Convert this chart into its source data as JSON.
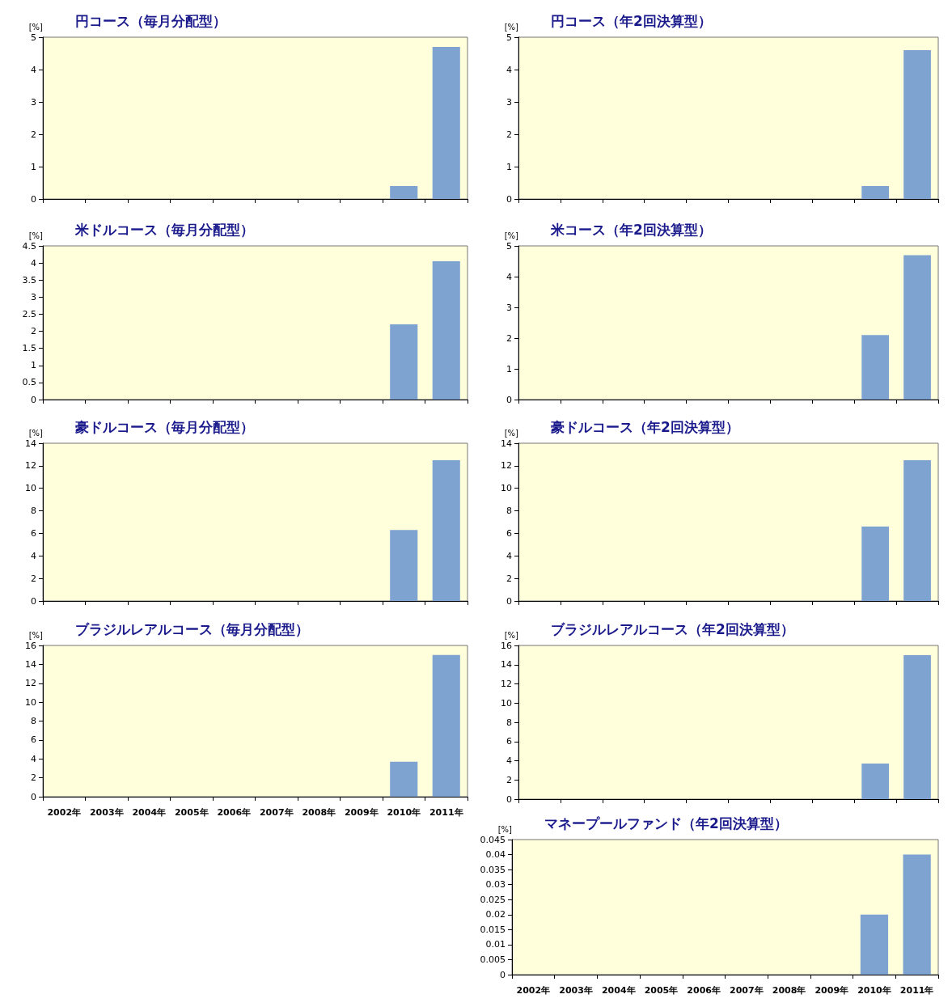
{
  "chart_data": [
    {
      "type": "bar",
      "title": "円コース（毎月分配型）",
      "ylabel": "[%]",
      "categories": [
        null,
        null,
        null,
        null,
        null,
        null,
        null,
        null,
        null,
        null
      ],
      "values": [
        null,
        null,
        null,
        null,
        null,
        null,
        null,
        null,
        0.4,
        4.7
      ],
      "color": "#7fa3d1",
      "ylim": [
        0,
        5
      ],
      "yticks": [
        0,
        1,
        2,
        3,
        4,
        5
      ],
      "tick_labels": "y"
    },
    {
      "type": "bar",
      "title": "円コース（年2回決算型）",
      "ylabel": "[%]",
      "categories": [
        null,
        null,
        null,
        null,
        null,
        null,
        null,
        null,
        null,
        null
      ],
      "values": [
        null,
        null,
        null,
        null,
        null,
        null,
        null,
        null,
        0.4,
        4.6
      ],
      "color": "#7fa3d1",
      "ylim": [
        0,
        5
      ],
      "yticks": [
        0,
        1,
        2,
        3,
        4,
        5
      ],
      "tick_labels": "y"
    },
    {
      "type": "bar",
      "title": "米ドルコース（毎月分配型）",
      "ylabel": "[%]",
      "categories": [
        null,
        null,
        null,
        null,
        null,
        null,
        null,
        null,
        null,
        null
      ],
      "values": [
        null,
        null,
        null,
        null,
        null,
        null,
        null,
        null,
        2.2,
        4.05
      ],
      "color": "#7fa3d1",
      "ylim": [
        0,
        4.5
      ],
      "yticks": [
        0,
        0.5,
        1,
        1.5,
        2,
        2.5,
        3,
        3.5,
        4,
        4.5
      ],
      "tick_labels": "y"
    },
    {
      "type": "bar",
      "title": "米コース（年2回決算型）",
      "ylabel": "[%]",
      "categories": [
        null,
        null,
        null,
        null,
        null,
        null,
        null,
        null,
        null,
        null
      ],
      "values": [
        null,
        null,
        null,
        null,
        null,
        null,
        null,
        null,
        2.1,
        4.7
      ],
      "color": "#7fa3d1",
      "ylim": [
        0,
        5
      ],
      "yticks": [
        0,
        1,
        2,
        3,
        4,
        5
      ],
      "tick_labels": "y"
    },
    {
      "type": "bar",
      "title": "豪ドルコース（毎月分配型）",
      "ylabel": "[%]",
      "categories": [
        null,
        null,
        null,
        null,
        null,
        null,
        null,
        null,
        null,
        null
      ],
      "values": [
        null,
        null,
        null,
        null,
        null,
        null,
        null,
        null,
        6.3,
        12.5
      ],
      "color": "#7fa3d1",
      "ylim": [
        0,
        14
      ],
      "yticks": [
        0,
        2,
        4,
        6,
        8,
        10,
        12,
        14
      ],
      "tick_labels": "y"
    },
    {
      "type": "bar",
      "title": "豪ドルコース（年2回決算型）",
      "ylabel": "[%]",
      "categories": [
        null,
        null,
        null,
        null,
        null,
        null,
        null,
        null,
        null,
        null
      ],
      "values": [
        null,
        null,
        null,
        null,
        null,
        null,
        null,
        null,
        6.6,
        12.5
      ],
      "color": "#7fa3d1",
      "ylim": [
        0,
        14
      ],
      "yticks": [
        0,
        2,
        4,
        6,
        8,
        10,
        12,
        14
      ],
      "tick_labels": "y"
    },
    {
      "type": "bar",
      "title": "ブラジルレアルコース（毎月分配型）",
      "ylabel": "[%]",
      "categories": [
        "2002年",
        "2003年",
        "2004年",
        "2005年",
        "2006年",
        "2007年",
        "2008年",
        "2009年",
        "2010年",
        "2011年"
      ],
      "values": [
        null,
        null,
        null,
        null,
        null,
        null,
        null,
        null,
        3.7,
        15
      ],
      "color": "#7fa3d1",
      "ylim": [
        0,
        16
      ],
      "yticks": [
        0,
        2,
        4,
        6,
        8,
        10,
        12,
        14,
        16
      ]
    },
    {
      "type": "bar",
      "title": "ブラジルレアルコース（年2回決算型）",
      "ylabel": "[%]",
      "categories": [
        null,
        null,
        null,
        null,
        null,
        null,
        null,
        null,
        null,
        null
      ],
      "values": [
        null,
        null,
        null,
        null,
        null,
        null,
        null,
        null,
        3.7,
        15
      ],
      "color": "#7fa3d1",
      "ylim": [
        0,
        16
      ],
      "yticks": [
        0,
        2,
        4,
        6,
        8,
        10,
        12,
        14,
        16
      ],
      "tick_labels": "y"
    },
    {
      "type": "bar",
      "title": "マネープールファンド（年2回決算型）",
      "ylabel": "[%]",
      "categories": [
        "2002年",
        "2003年",
        "2004年",
        "2005年",
        "2006年",
        "2007年",
        "2008年",
        "2009年",
        "2010年",
        "2011年"
      ],
      "values": [
        null,
        null,
        null,
        null,
        null,
        null,
        null,
        null,
        0.02,
        0.04
      ],
      "color": "#7fa3d1",
      "ylim": [
        0,
        0.045
      ],
      "yticks": [
        0,
        0.005,
        0.01,
        0.015,
        0.02,
        0.025,
        0.03,
        0.035,
        0.04,
        0.045
      ]
    }
  ]
}
